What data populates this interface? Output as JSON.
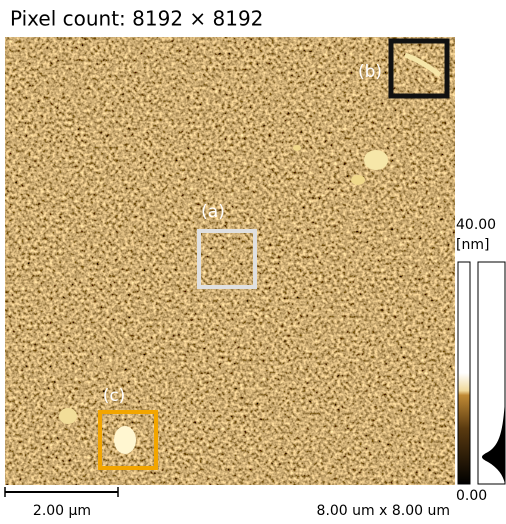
{
  "header": {
    "title": "Pixel count: 8192 × 8192"
  },
  "image": {
    "labels": [
      "(a)",
      "(b)",
      "(c)"
    ]
  },
  "colorbar": {
    "max": "40.00",
    "unit": "[nm]",
    "min": "0.00"
  },
  "scale_bar": "2.00 µm",
  "field_size": "8.00 um x 8.00 um"
}
